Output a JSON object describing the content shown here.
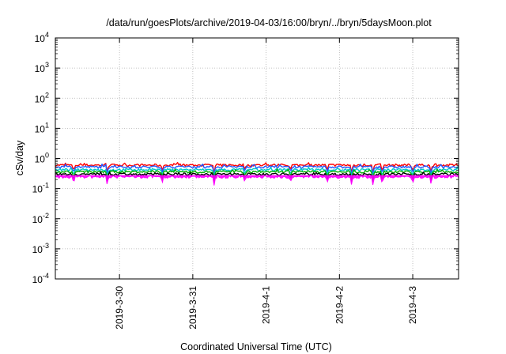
{
  "chart_data": {
    "type": "area",
    "title": "/data/run/goesPlots/archive/2019-04-03/16:00/bryn/../bryn/5daysMoon.plot",
    "xlabel": "Coordinated Universal Time (UTC)",
    "ylabel": "cSv/day",
    "yscale": "log",
    "ylim": [
      0.0001,
      10000
    ],
    "xlim": [
      "2019-03-29T03:00",
      "2019-04-03T15:00"
    ],
    "yticks": [
      {
        "value": 0.0001,
        "base": "10",
        "exp": "-4"
      },
      {
        "value": 0.001,
        "base": "10",
        "exp": "-3"
      },
      {
        "value": 0.01,
        "base": "10",
        "exp": "-2"
      },
      {
        "value": 0.1,
        "base": "10",
        "exp": "-1"
      },
      {
        "value": 1,
        "base": "10",
        "exp": "0"
      },
      {
        "value": 10,
        "base": "10",
        "exp": "1"
      },
      {
        "value": 100,
        "base": "10",
        "exp": "2"
      },
      {
        "value": 1000,
        "base": "10",
        "exp": "3"
      },
      {
        "value": 10000,
        "base": "10",
        "exp": "4"
      }
    ],
    "xticks": [
      {
        "value": "2019-03-30T00:00",
        "label": "2019-3-30"
      },
      {
        "value": "2019-03-31T00:00",
        "label": "2019-3-31"
      },
      {
        "value": "2019-04-01T00:00",
        "label": "2019-4-1"
      },
      {
        "value": "2019-04-02T00:00",
        "label": "2019-4-2"
      },
      {
        "value": "2019-04-03T00:00",
        "label": "2019-4-3"
      }
    ],
    "grid": true,
    "series": [
      {
        "color": "#ff0000",
        "level": 0.6,
        "style": "line"
      },
      {
        "color": "#2255ff",
        "level": 0.52,
        "style": "line"
      },
      {
        "color": "#00c8c8",
        "level": 0.42,
        "style": "line"
      },
      {
        "color": "#00b000",
        "level": 0.36,
        "style": "line"
      },
      {
        "color": "#000000",
        "level": 0.3,
        "style": "line"
      },
      {
        "color": "#ff00ff",
        "level": 0.24,
        "style": "fill"
      }
    ],
    "dips": [
      {
        "time": "2019-03-29T09:00",
        "value": 0.14
      },
      {
        "time": "2019-03-29T20:00",
        "value": 0.12
      },
      {
        "time": "2019-03-30T14:00",
        "value": 0.15
      },
      {
        "time": "2019-03-31T07:00",
        "value": 0.12
      },
      {
        "time": "2019-03-31T17:00",
        "value": 0.16
      },
      {
        "time": "2019-04-01T08:00",
        "value": 0.16
      },
      {
        "time": "2019-04-01T20:00",
        "value": 0.15
      },
      {
        "time": "2019-04-02T04:00",
        "value": 0.12
      },
      {
        "time": "2019-04-02T11:00",
        "value": 0.12
      },
      {
        "time": "2019-04-02T14:00",
        "value": 0.13
      },
      {
        "time": "2019-04-03T00:00",
        "value": 0.13
      },
      {
        "time": "2019-04-03T06:00",
        "value": 0.13
      }
    ]
  }
}
